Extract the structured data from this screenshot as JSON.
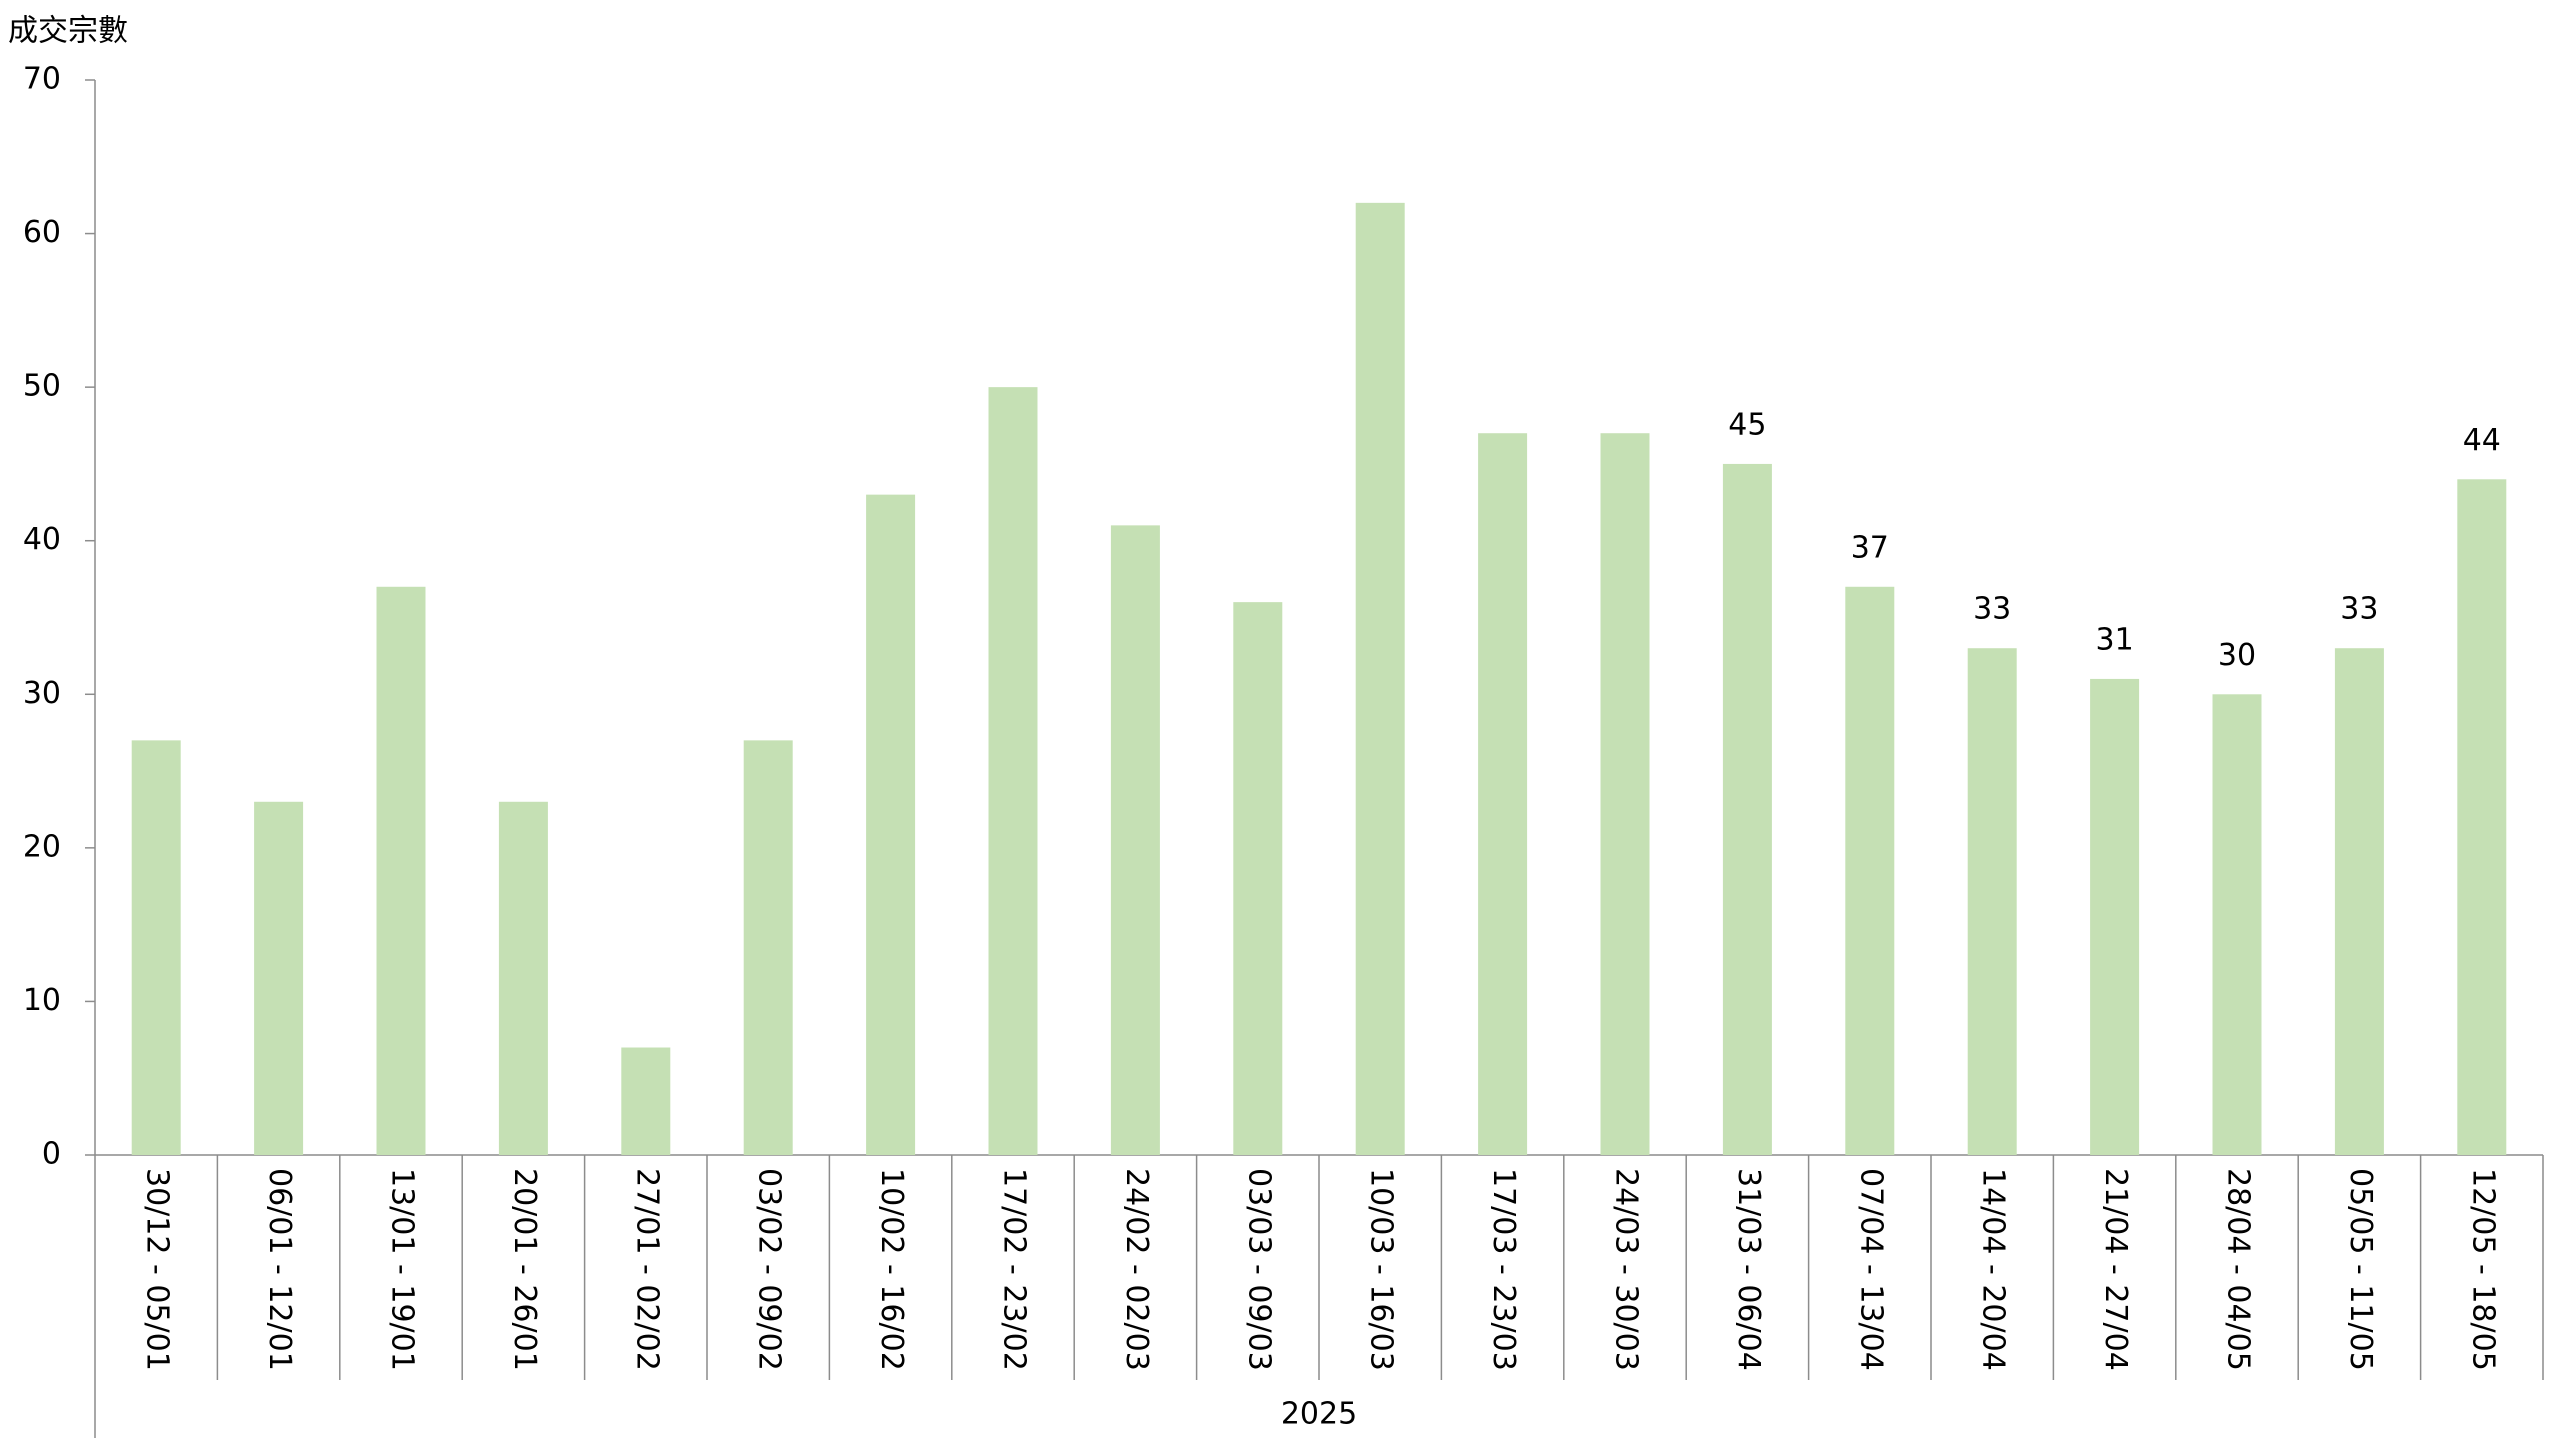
{
  "chart_data": {
    "type": "bar",
    "y_label": "成交宗數",
    "group_label": "2025",
    "categories": [
      "30/12 - 05/01",
      "06/01 - 12/01",
      "13/01 - 19/01",
      "20/01 - 26/01",
      "27/01 - 02/02",
      "03/02 - 09/02",
      "10/02 - 16/02",
      "17/02 - 23/02",
      "24/02 - 02/03",
      "03/03 - 09/03",
      "10/03 - 16/03",
      "17/03 - 23/03",
      "24/03 - 30/03",
      "31/03 - 06/04",
      "07/04 - 13/04",
      "14/04 - 20/04",
      "21/04 - 27/04",
      "28/04 - 04/05",
      "05/05 - 11/05",
      "12/05 - 18/05"
    ],
    "values": [
      27,
      23,
      37,
      23,
      7,
      27,
      43,
      50,
      41,
      36,
      62,
      47,
      47,
      45,
      37,
      33,
      31,
      30,
      33,
      44
    ],
    "value_labels": [
      null,
      null,
      null,
      null,
      null,
      null,
      null,
      null,
      null,
      null,
      null,
      null,
      null,
      "45",
      "37",
      "33",
      "31",
      "30",
      "33",
      "44"
    ],
    "color": "#c5e0b4",
    "ylim": [
      0,
      70
    ],
    "yticks": [
      0,
      10,
      20,
      30,
      40,
      50,
      60,
      70
    ],
    "grid": false
  }
}
